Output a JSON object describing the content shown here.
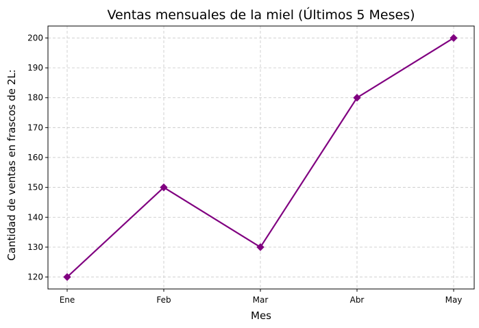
{
  "chart_data": {
    "type": "line",
    "title": "Ventas mensuales de la miel (Últimos 5 Meses)",
    "xlabel": "Mes",
    "ylabel": "Cantidad de ventas en frascos de 2L:",
    "categories": [
      "Ene",
      "Feb",
      "Mar",
      "Abr",
      "May"
    ],
    "series": [
      {
        "values": [
          120,
          150,
          130,
          180,
          200
        ],
        "color": "#800080",
        "marker": "diamond"
      }
    ],
    "ylim": [
      116,
      204
    ],
    "yticks": [
      120,
      130,
      140,
      150,
      160,
      170,
      180,
      190,
      200
    ],
    "ytick_labels": [
      "120",
      "130",
      "140",
      "150",
      "160",
      "170",
      "180",
      "190",
      "200"
    ],
    "grid": true,
    "grid_style": "dashed",
    "legend": "none"
  }
}
